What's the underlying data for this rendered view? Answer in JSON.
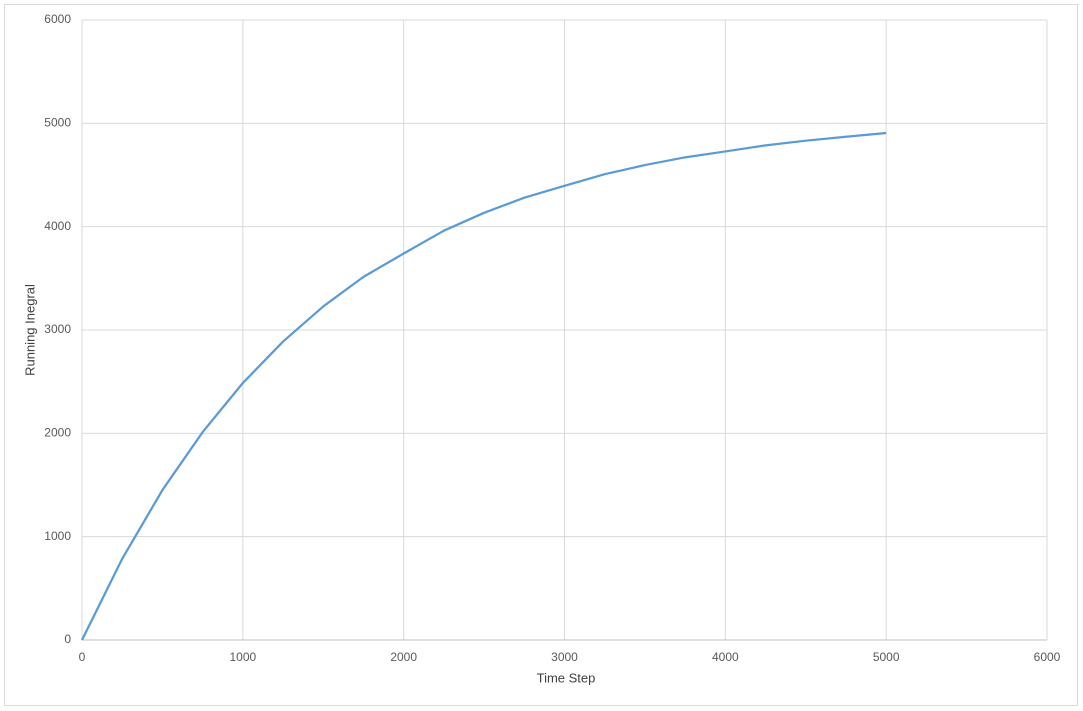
{
  "chart_data": {
    "type": "line",
    "x_label": "Time Step",
    "y_label": "Running Inegral",
    "x": [
      0,
      250,
      500,
      750,
      1000,
      1250,
      1500,
      1750,
      2000,
      2250,
      2500,
      2750,
      3000,
      3250,
      3500,
      3750,
      4000,
      4250,
      4500,
      4750,
      5000
    ],
    "series": [
      {
        "color": "#5b9bd5",
        "values": [
          0,
          786,
          1451,
          2012,
          2487,
          2888,
          3228,
          3514,
          3740,
          3961,
          4134,
          4280,
          4395,
          4508,
          4596,
          4671,
          4728,
          4787,
          4832,
          4870,
          4906
        ]
      }
    ],
    "xlim": [
      0,
      6000
    ],
    "xticks": [
      0,
      1000,
      2000,
      3000,
      4000,
      5000,
      6000
    ],
    "ylim": [
      0,
      6000
    ],
    "yticks": [
      0,
      1000,
      2000,
      3000,
      4000,
      5000,
      6000
    ],
    "grid": true
  }
}
